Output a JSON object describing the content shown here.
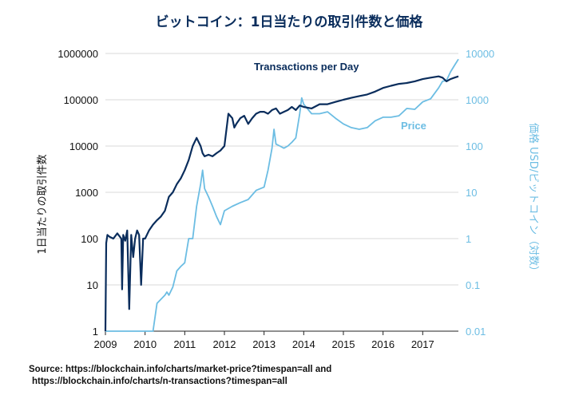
{
  "chart_data": {
    "type": "line",
    "title": "ビットコイン：1日当たりの取引件数と価格",
    "x_ticks": [
      "2009",
      "2010",
      "2011",
      "2012",
      "2013",
      "2014",
      "2015",
      "2016",
      "2017"
    ],
    "xlim": [
      2009,
      2017.9
    ],
    "y_left": {
      "label": "1日当たりの取引件数",
      "scale": "log",
      "ticks": [
        "1",
        "10",
        "100",
        "1000",
        "10000",
        "100000",
        "1000000"
      ],
      "lim": [
        1,
        1000000
      ]
    },
    "y_right": {
      "label": "価格 USD/ビットコイン（対数）",
      "scale": "log",
      "ticks": [
        "0.01",
        "0.1",
        "1",
        "10",
        "100",
        "1000",
        "10000"
      ],
      "lim": [
        0.01,
        10000
      ]
    },
    "grid": true,
    "series": [
      {
        "name": "Transactions per Day",
        "axis": "left",
        "color": "#0a2d5c",
        "x": [
          2009.0,
          2009.02,
          2009.05,
          2009.1,
          2009.2,
          2009.3,
          2009.4,
          2009.42,
          2009.45,
          2009.5,
          2009.55,
          2009.6,
          2009.65,
          2009.7,
          2009.75,
          2009.8,
          2009.85,
          2009.9,
          2009.95,
          2010.0,
          2010.1,
          2010.2,
          2010.3,
          2010.4,
          2010.5,
          2010.6,
          2010.7,
          2010.8,
          2010.9,
          2011.0,
          2011.1,
          2011.2,
          2011.3,
          2011.4,
          2011.45,
          2011.5,
          2011.6,
          2011.7,
          2011.8,
          2011.9,
          2012.0,
          2012.1,
          2012.2,
          2012.25,
          2012.3,
          2012.4,
          2012.5,
          2012.6,
          2012.7,
          2012.8,
          2012.9,
          2013.0,
          2013.1,
          2013.2,
          2013.3,
          2013.4,
          2013.5,
          2013.6,
          2013.7,
          2013.8,
          2013.9,
          2014.0,
          2014.2,
          2014.4,
          2014.6,
          2014.8,
          2015.0,
          2015.2,
          2015.4,
          2015.6,
          2015.8,
          2016.0,
          2016.2,
          2016.4,
          2016.6,
          2016.8,
          2017.0,
          2017.2,
          2017.4,
          2017.5,
          2017.6,
          2017.7,
          2017.8,
          2017.9
        ],
        "values": [
          1,
          80,
          120,
          110,
          100,
          130,
          100,
          8,
          120,
          90,
          150,
          3,
          120,
          40,
          100,
          150,
          120,
          10,
          100,
          100,
          150,
          200,
          250,
          300,
          400,
          800,
          1000,
          1500,
          2000,
          3000,
          5000,
          10000,
          15000,
          10000,
          7000,
          6000,
          6500,
          6000,
          7000,
          8000,
          10000,
          50000,
          40000,
          25000,
          30000,
          40000,
          45000,
          30000,
          40000,
          50000,
          55000,
          55000,
          50000,
          60000,
          65000,
          50000,
          55000,
          60000,
          70000,
          60000,
          75000,
          70000,
          65000,
          80000,
          80000,
          90000,
          100000,
          110000,
          120000,
          130000,
          150000,
          180000,
          200000,
          220000,
          230000,
          250000,
          280000,
          300000,
          320000,
          300000,
          250000,
          280000,
          300000,
          320000
        ]
      },
      {
        "name": "Price",
        "axis": "right",
        "color": "#6cbde3",
        "x": [
          2009.0,
          2010.2,
          2010.3,
          2010.5,
          2010.55,
          2010.6,
          2010.7,
          2010.8,
          2010.9,
          2011.0,
          2011.1,
          2011.2,
          2011.3,
          2011.4,
          2011.45,
          2011.5,
          2011.6,
          2011.7,
          2011.8,
          2011.9,
          2012.0,
          2012.2,
          2012.4,
          2012.6,
          2012.8,
          2013.0,
          2013.1,
          2013.2,
          2013.25,
          2013.3,
          2013.4,
          2013.5,
          2013.6,
          2013.7,
          2013.8,
          2013.9,
          2013.95,
          2014.0,
          2014.2,
          2014.4,
          2014.6,
          2014.8,
          2015.0,
          2015.2,
          2015.4,
          2015.6,
          2015.8,
          2016.0,
          2016.2,
          2016.4,
          2016.6,
          2016.8,
          2017.0,
          2017.2,
          2017.4,
          2017.5,
          2017.6,
          2017.7,
          2017.8,
          2017.9
        ],
        "values": [
          0.01,
          0.01,
          0.04,
          0.06,
          0.07,
          0.06,
          0.09,
          0.2,
          0.25,
          0.3,
          1,
          1,
          5,
          15,
          30,
          12,
          8,
          5,
          3,
          2,
          4,
          5,
          6,
          7,
          11,
          13,
          30,
          90,
          230,
          110,
          100,
          90,
          100,
          120,
          150,
          500,
          1100,
          800,
          500,
          500,
          550,
          400,
          300,
          250,
          230,
          250,
          350,
          420,
          420,
          450,
          650,
          620,
          900,
          1050,
          1800,
          2500,
          2600,
          4000,
          5500,
          7500
        ]
      }
    ],
    "annotations": [
      "Transactions per Day",
      "Price"
    ]
  },
  "source": {
    "line1": "Source: https://blockchain.info/charts/market-price?timespan=all and",
    "line2": "https://blockchain.info/charts/n-transactions?timespan=all"
  }
}
